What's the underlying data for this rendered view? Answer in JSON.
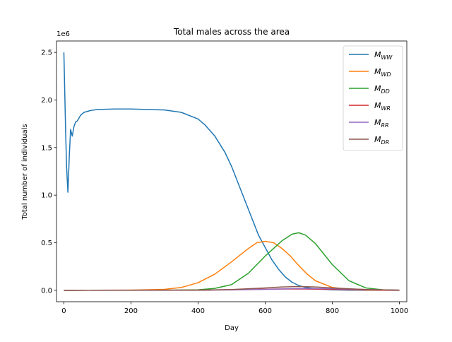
{
  "chart_data": {
    "type": "line",
    "title": "Total males across the area",
    "xlabel": "Day",
    "ylabel": "Total number of individuals",
    "y_scale_text": "1e6",
    "xlim": [
      -22,
      1022
    ],
    "ylim": [
      -0.12,
      2.62
    ],
    "xticks": [
      0,
      200,
      400,
      600,
      800,
      1000
    ],
    "xtick_labels": [
      "0",
      "200",
      "400",
      "600",
      "800",
      "1000"
    ],
    "yticks": [
      0.0,
      0.5,
      1.0,
      1.5,
      2.0,
      2.5
    ],
    "ytick_labels": [
      "0.0",
      "0.5",
      "1.0",
      "1.5",
      "2.0",
      "2.5"
    ],
    "grid": false,
    "legend_position": "top-right",
    "series": [
      {
        "name_base": "M",
        "name_sub": "WW",
        "color": "#1f77b4",
        "x": [
          0,
          5,
          8,
          12,
          16,
          20,
          25,
          30,
          35,
          40,
          50,
          60,
          80,
          100,
          150,
          200,
          250,
          300,
          350,
          400,
          420,
          450,
          480,
          500,
          520,
          540,
          560,
          580,
          600,
          620,
          640,
          660,
          680,
          700,
          720,
          750,
          800,
          850,
          900,
          1000
        ],
        "y": [
          2.5,
          1.7,
          1.3,
          1.03,
          1.4,
          1.69,
          1.62,
          1.72,
          1.77,
          1.78,
          1.84,
          1.87,
          1.89,
          1.9,
          1.905,
          1.905,
          1.9,
          1.895,
          1.87,
          1.8,
          1.74,
          1.62,
          1.45,
          1.3,
          1.12,
          0.94,
          0.76,
          0.58,
          0.45,
          0.32,
          0.22,
          0.14,
          0.085,
          0.05,
          0.03,
          0.015,
          0.005,
          0.002,
          0.001,
          0.0
        ]
      },
      {
        "name_base": "M",
        "name_sub": "WD",
        "color": "#ff7f0e",
        "x": [
          0,
          200,
          300,
          350,
          400,
          450,
          500,
          550,
          575,
          600,
          625,
          650,
          675,
          700,
          725,
          750,
          800,
          850,
          900,
          1000
        ],
        "y": [
          0.0,
          0.002,
          0.01,
          0.03,
          0.08,
          0.17,
          0.3,
          0.44,
          0.5,
          0.515,
          0.5,
          0.44,
          0.36,
          0.26,
          0.17,
          0.1,
          0.03,
          0.01,
          0.003,
          0.0
        ]
      },
      {
        "name_base": "M",
        "name_sub": "DD",
        "color": "#2ca02c",
        "x": [
          0,
          300,
          400,
          450,
          500,
          550,
          600,
          650,
          680,
          700,
          720,
          750,
          800,
          850,
          900,
          950,
          1000
        ],
        "y": [
          0.0,
          0.001,
          0.005,
          0.02,
          0.06,
          0.18,
          0.36,
          0.52,
          0.59,
          0.605,
          0.58,
          0.49,
          0.27,
          0.1,
          0.025,
          0.005,
          0.001
        ]
      },
      {
        "name_base": "M",
        "name_sub": "WR",
        "color": "#d62728",
        "x": [
          0,
          400,
          500,
          600,
          700,
          800,
          900,
          1000
        ],
        "y": [
          0.0,
          0.002,
          0.006,
          0.012,
          0.015,
          0.01,
          0.004,
          0.001
        ]
      },
      {
        "name_base": "M",
        "name_sub": "RR",
        "color": "#9467bd",
        "x": [
          0,
          400,
          500,
          600,
          700,
          800,
          900,
          1000
        ],
        "y": [
          0.0,
          0.001,
          0.004,
          0.01,
          0.018,
          0.016,
          0.008,
          0.002
        ]
      },
      {
        "name_base": "M",
        "name_sub": "DR",
        "color": "#8c564b",
        "x": [
          0,
          400,
          500,
          600,
          650,
          700,
          750,
          800,
          900,
          1000
        ],
        "y": [
          0.0,
          0.002,
          0.008,
          0.025,
          0.035,
          0.04,
          0.035,
          0.025,
          0.008,
          0.002
        ]
      }
    ]
  }
}
